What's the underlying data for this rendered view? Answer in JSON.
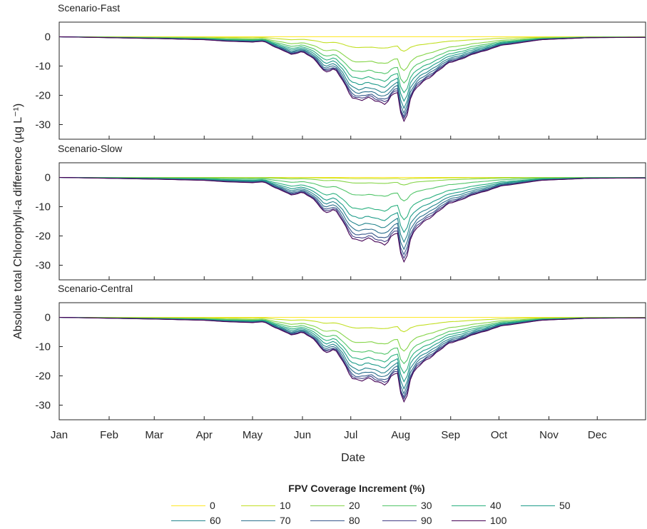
{
  "chart_data": {
    "type": "line",
    "ylabel": "Absolute total Chlorophyll-a difference (µg L⁻¹)",
    "xlabel": "Date",
    "x_ticks": [
      "Jan",
      "Feb",
      "Mar",
      "Apr",
      "May",
      "Jun",
      "Jul",
      "Aug",
      "Sep",
      "Oct",
      "Nov",
      "Dec"
    ],
    "y_ticks": [
      0,
      -10,
      -20,
      -30
    ],
    "ylim": [
      -35,
      5
    ],
    "legend": {
      "title": "FPV Coverage Increment (%)",
      "placement": "bottom",
      "entries": [
        "0",
        "10",
        "20",
        "30",
        "40",
        "50",
        "60",
        "70",
        "80",
        "90",
        "100"
      ]
    },
    "series_colors": [
      "#fde725",
      "#c2df23",
      "#86d549",
      "#52c569",
      "#2ab07f",
      "#1e9b8a",
      "#25858e",
      "#2d708e",
      "#38588c",
      "#433e85",
      "#440154"
    ],
    "panels": [
      {
        "title": "Scenario-Fast",
        "base_profile": [
          [
            1,
            0
          ],
          [
            31,
            -0.3
          ],
          [
            60,
            -0.6
          ],
          [
            91,
            -1.0
          ],
          [
            105,
            -1.5
          ],
          [
            121,
            -1.8
          ],
          [
            128,
            -1.5
          ],
          [
            135,
            -3.5
          ],
          [
            145,
            -6
          ],
          [
            152,
            -5
          ],
          [
            160,
            -8
          ],
          [
            166,
            -12
          ],
          [
            172,
            -11
          ],
          [
            177,
            -15
          ],
          [
            182,
            -20
          ],
          [
            188,
            -22
          ],
          [
            194,
            -21
          ],
          [
            200,
            -22
          ],
          [
            204,
            -23
          ],
          [
            208,
            -20
          ],
          [
            211,
            -19
          ],
          [
            213,
            -26
          ],
          [
            216,
            -30
          ],
          [
            218,
            -22
          ],
          [
            222,
            -18
          ],
          [
            228,
            -15
          ],
          [
            235,
            -12
          ],
          [
            243,
            -9
          ],
          [
            258,
            -6
          ],
          [
            275,
            -3
          ],
          [
            300,
            -1
          ],
          [
            330,
            -0.3
          ],
          [
            365,
            -0.2
          ]
        ],
        "series": [
          {
            "name": "0",
            "factor": 0.0
          },
          {
            "name": "10",
            "factor": 0.17
          },
          {
            "name": "20",
            "factor": 0.4
          },
          {
            "name": "30",
            "factor": 0.55
          },
          {
            "name": "40",
            "factor": 0.66
          },
          {
            "name": "50",
            "factor": 0.75
          },
          {
            "name": "60",
            "factor": 0.83
          },
          {
            "name": "70",
            "factor": 0.89
          },
          {
            "name": "80",
            "factor": 0.94
          },
          {
            "name": "90",
            "factor": 0.97
          },
          {
            "name": "100",
            "factor": 1.0
          }
        ]
      },
      {
        "title": "Scenario-Slow",
        "base_profile": [
          [
            1,
            0
          ],
          [
            31,
            -0.3
          ],
          [
            60,
            -0.6
          ],
          [
            91,
            -1.0
          ],
          [
            105,
            -1.5
          ],
          [
            121,
            -1.8
          ],
          [
            128,
            -1.5
          ],
          [
            135,
            -3.5
          ],
          [
            145,
            -6
          ],
          [
            152,
            -5
          ],
          [
            160,
            -8
          ],
          [
            166,
            -12
          ],
          [
            172,
            -11
          ],
          [
            177,
            -15
          ],
          [
            182,
            -20
          ],
          [
            188,
            -22
          ],
          [
            194,
            -21
          ],
          [
            200,
            -22
          ],
          [
            204,
            -23
          ],
          [
            208,
            -20
          ],
          [
            211,
            -19
          ],
          [
            213,
            -26
          ],
          [
            216,
            -30
          ],
          [
            218,
            -22
          ],
          [
            222,
            -18
          ],
          [
            228,
            -15
          ],
          [
            235,
            -12
          ],
          [
            243,
            -9
          ],
          [
            258,
            -6
          ],
          [
            275,
            -3
          ],
          [
            300,
            -1
          ],
          [
            330,
            -0.3
          ],
          [
            365,
            -0.2
          ]
        ],
        "series": [
          {
            "name": "0",
            "factor": 0.0
          },
          {
            "name": "10",
            "factor": 0.02
          },
          {
            "name": "20",
            "factor": 0.09
          },
          {
            "name": "30",
            "factor": 0.28
          },
          {
            "name": "40",
            "factor": 0.5
          },
          {
            "name": "50",
            "factor": 0.64
          },
          {
            "name": "60",
            "factor": 0.75
          },
          {
            "name": "70",
            "factor": 0.84
          },
          {
            "name": "80",
            "factor": 0.91
          },
          {
            "name": "90",
            "factor": 0.96
          },
          {
            "name": "100",
            "factor": 1.0
          }
        ]
      },
      {
        "title": "Scenario-Central",
        "base_profile": [
          [
            1,
            0
          ],
          [
            31,
            -0.3
          ],
          [
            60,
            -0.6
          ],
          [
            91,
            -1.0
          ],
          [
            105,
            -1.5
          ],
          [
            121,
            -1.8
          ],
          [
            128,
            -1.5
          ],
          [
            135,
            -3.5
          ],
          [
            145,
            -6
          ],
          [
            152,
            -5
          ],
          [
            160,
            -8
          ],
          [
            166,
            -12
          ],
          [
            172,
            -11
          ],
          [
            177,
            -15
          ],
          [
            182,
            -20
          ],
          [
            188,
            -22
          ],
          [
            194,
            -21
          ],
          [
            200,
            -22
          ],
          [
            204,
            -23
          ],
          [
            208,
            -20
          ],
          [
            211,
            -19
          ],
          [
            213,
            -26
          ],
          [
            216,
            -30
          ],
          [
            218,
            -22
          ],
          [
            222,
            -18
          ],
          [
            228,
            -15
          ],
          [
            235,
            -12
          ],
          [
            243,
            -9
          ],
          [
            258,
            -6
          ],
          [
            275,
            -3
          ],
          [
            300,
            -1
          ],
          [
            330,
            -0.3
          ],
          [
            365,
            -0.2
          ]
        ],
        "series": [
          {
            "name": "0",
            "factor": 0.0
          },
          {
            "name": "10",
            "factor": 0.17
          },
          {
            "name": "20",
            "factor": 0.4
          },
          {
            "name": "30",
            "factor": 0.55
          },
          {
            "name": "40",
            "factor": 0.66
          },
          {
            "name": "50",
            "factor": 0.75
          },
          {
            "name": "60",
            "factor": 0.83
          },
          {
            "name": "70",
            "factor": 0.89
          },
          {
            "name": "80",
            "factor": 0.94
          },
          {
            "name": "90",
            "factor": 0.97
          },
          {
            "name": "100",
            "factor": 1.0
          }
        ]
      }
    ]
  }
}
